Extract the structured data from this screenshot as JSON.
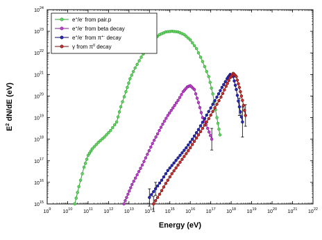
{
  "chart_data": {
    "type": "line",
    "title": "",
    "xlabel": "Energy (eV)",
    "ylabel_parts": {
      "base": "E",
      "sup": "2",
      "rest": " dN/dE (eV)"
    },
    "x_scale": "log",
    "y_scale": "log",
    "xlim": [
      1000000000.0,
      1e+22
    ],
    "ylim": [
      1000000000000000.0,
      1e+24
    ],
    "x_ticks": [
      {
        "base": "10",
        "exp": "9",
        "value": 1000000000.0
      },
      {
        "base": "10",
        "exp": "10",
        "value": 10000000000.0
      },
      {
        "base": "10",
        "exp": "11",
        "value": 100000000000.0
      },
      {
        "base": "10",
        "exp": "12",
        "value": 1000000000000.0
      },
      {
        "base": "10",
        "exp": "13",
        "value": 10000000000000.0
      },
      {
        "base": "10",
        "exp": "14",
        "value": 100000000000000.0
      },
      {
        "base": "10",
        "exp": "15",
        "value": 1000000000000000.0
      },
      {
        "base": "10",
        "exp": "16",
        "value": 1e+16
      },
      {
        "base": "10",
        "exp": "17",
        "value": 1e+17
      },
      {
        "base": "10",
        "exp": "18",
        "value": 1e+18
      },
      {
        "base": "10",
        "exp": "19",
        "value": 1e+19
      },
      {
        "base": "10",
        "exp": "20",
        "value": 1e+20
      },
      {
        "base": "10",
        "exp": "21",
        "value": 1e+21
      },
      {
        "base": "10",
        "exp": "22",
        "value": 1e+22
      }
    ],
    "y_ticks": [
      {
        "base": "10",
        "exp": "15",
        "value": 1000000000000000.0
      },
      {
        "base": "10",
        "exp": "16",
        "value": 1e+16
      },
      {
        "base": "10",
        "exp": "17",
        "value": 1e+17
      },
      {
        "base": "10",
        "exp": "18",
        "value": 1e+18
      },
      {
        "base": "10",
        "exp": "19",
        "value": 1e+19
      },
      {
        "base": "10",
        "exp": "20",
        "value": 1e+20
      },
      {
        "base": "10",
        "exp": "21",
        "value": 1e+21
      },
      {
        "base": "10",
        "exp": "22",
        "value": 1e+22
      },
      {
        "base": "10",
        "exp": "23",
        "value": 1e+23
      },
      {
        "base": "10",
        "exp": "24",
        "value": 1e+24
      }
    ],
    "grid": false,
    "legend_position": "top-left",
    "series": [
      {
        "name_parts": [
          "e",
          "+",
          "/e",
          "-",
          " from pair.p"
        ],
        "color": "#2ca02c",
        "fill": "#66d166",
        "log10_x": [
          10.35,
          10.55,
          10.8,
          11.0,
          11.2,
          11.5,
          11.8,
          12.1,
          12.4,
          12.6,
          12.85,
          13.05,
          13.3,
          13.6,
          13.9,
          14.2,
          14.5,
          14.8,
          15.1,
          15.4,
          15.7,
          16.0,
          16.3,
          16.6,
          16.9,
          17.1,
          17.3,
          17.45
        ],
        "log10_y": [
          15.0,
          15.8,
          16.7,
          17.25,
          17.55,
          17.85,
          18.1,
          18.4,
          18.8,
          19.5,
          20.2,
          20.8,
          21.3,
          21.8,
          22.25,
          22.6,
          22.85,
          22.97,
          23.0,
          22.97,
          22.85,
          22.6,
          22.2,
          21.6,
          20.9,
          20.1,
          19.0,
          18.2
        ],
        "error_bars": []
      },
      {
        "name_parts": [
          "e",
          "+",
          "/e",
          "-",
          " from beta decay"
        ],
        "color": "#7a1f8f",
        "fill": "#c040c8",
        "log10_x": [
          12.75,
          12.95,
          13.15,
          13.4,
          13.65,
          13.9,
          14.15,
          14.4,
          14.65,
          14.9,
          15.15,
          15.4,
          15.65,
          15.85,
          16.0,
          16.2,
          16.4,
          16.6,
          16.85,
          17.05
        ],
        "log10_y": [
          15.0,
          15.45,
          15.9,
          16.35,
          16.8,
          17.3,
          17.8,
          18.25,
          18.7,
          19.1,
          19.45,
          19.8,
          20.2,
          20.42,
          20.48,
          20.3,
          19.7,
          19.0,
          18.5,
          18.0
        ],
        "error_bars": [
          [
            17.05,
            18.0,
            0.5
          ]
        ]
      },
      {
        "name_parts": [
          "e",
          "+",
          "/e",
          "-",
          " from ",
          "π",
          "+-",
          " decay"
        ],
        "color": "#0a0a6a",
        "fill": "#2a2ab0",
        "log10_x": [
          14.0,
          14.3,
          14.6,
          14.9,
          15.2,
          15.5,
          15.8,
          16.1,
          16.4,
          16.7,
          17.0,
          17.3,
          17.55,
          17.8,
          17.95,
          18.1,
          18.25,
          18.4,
          18.55
        ],
        "log10_y": [
          15.3,
          15.7,
          16.1,
          16.55,
          16.9,
          17.25,
          17.6,
          18.0,
          18.45,
          18.95,
          19.45,
          19.95,
          20.4,
          20.8,
          21.0,
          20.9,
          20.3,
          19.5,
          18.8
        ],
        "error_bars": [
          [
            14.0,
            15.3,
            0.4
          ],
          [
            14.3,
            15.7,
            0.3
          ],
          [
            18.4,
            19.5,
            0.4
          ],
          [
            18.55,
            18.8,
            0.7
          ]
        ]
      },
      {
        "name_parts": [
          "γ",
          " from ",
          "π",
          "0",
          " decay"
        ],
        "color": "#6b0f0f",
        "fill": "#c83030",
        "log10_x": [
          14.2,
          14.5,
          14.8,
          15.1,
          15.4,
          15.7,
          16.0,
          16.3,
          16.6,
          16.9,
          17.2,
          17.5,
          17.75,
          17.95,
          18.1,
          18.25,
          18.4,
          18.55,
          18.7
        ],
        "log10_y": [
          15.0,
          15.45,
          15.95,
          16.4,
          16.8,
          17.2,
          17.6,
          18.05,
          18.5,
          18.95,
          19.45,
          19.95,
          20.45,
          20.85,
          21.05,
          20.9,
          20.4,
          19.8,
          19.1
        ],
        "error_bars": [
          [
            14.2,
            15.0,
            0.35
          ],
          [
            18.7,
            19.1,
            0.5
          ]
        ]
      }
    ]
  }
}
